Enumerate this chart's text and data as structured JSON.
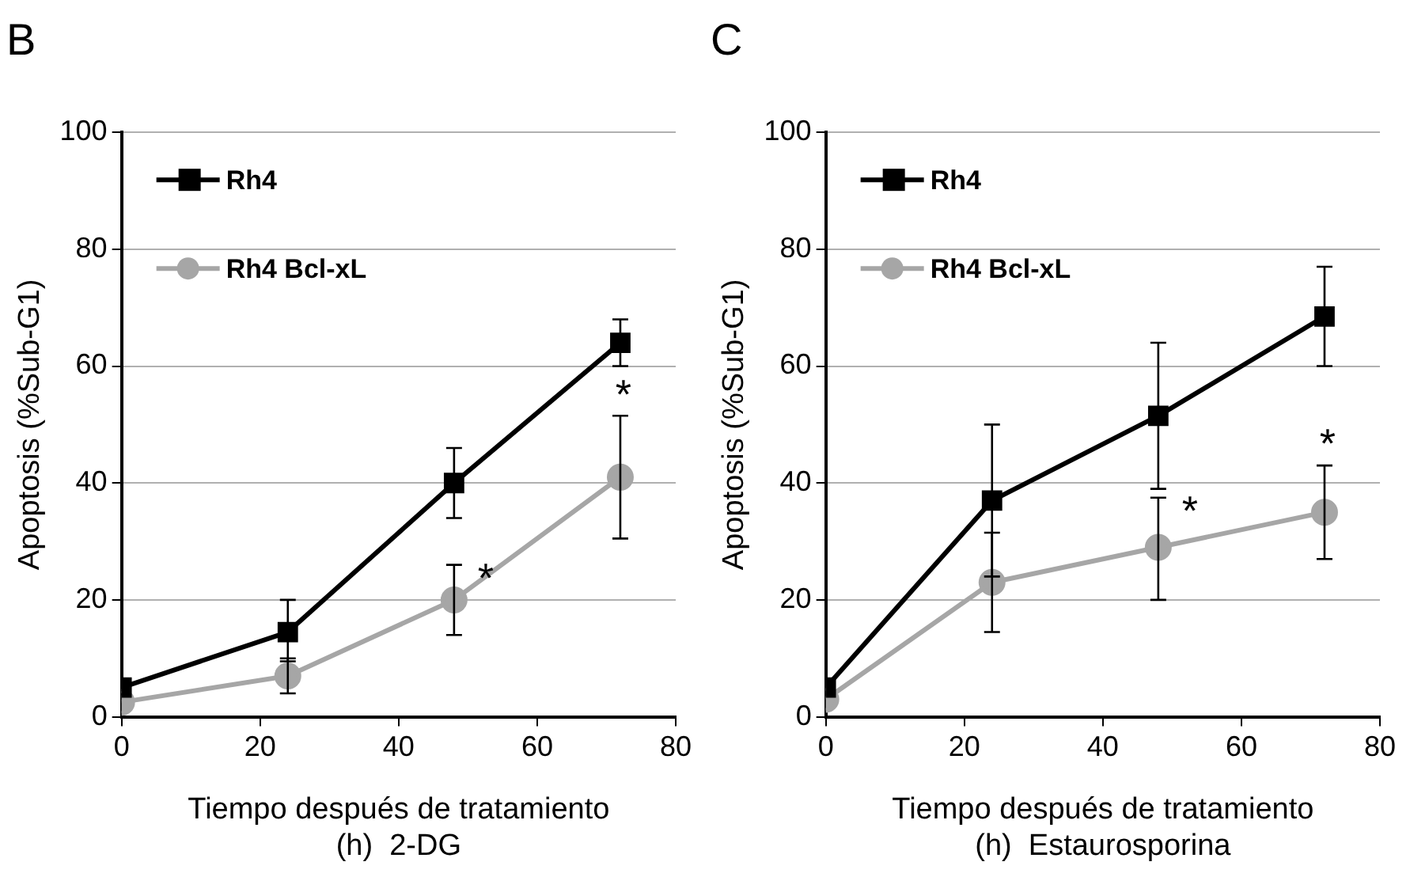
{
  "chart_data": [
    {
      "type": "line",
      "title": "B",
      "xlabel": "Tiempo después de tratamiento\n(h)  2-DG",
      "ylabel": "Apoptosis (%Sub-G1)",
      "x": [
        0,
        24,
        48,
        72
      ],
      "xlim": [
        0,
        80
      ],
      "xticks": [
        0,
        20,
        40,
        60,
        80
      ],
      "ylim": [
        0,
        100
      ],
      "yticks": [
        0,
        20,
        40,
        60,
        80,
        100
      ],
      "grid": "y",
      "legend": "top left",
      "series": [
        {
          "name": "Rh4",
          "color": "#000000",
          "marker": "square",
          "values": [
            5,
            14.5,
            40,
            64
          ],
          "errors": [
            null,
            [
              9.5,
              20
            ],
            [
              34,
              46
            ],
            [
              60,
              68
            ]
          ]
        },
        {
          "name": "Rh4 Bcl-xL",
          "color": "#a6a6a6",
          "marker": "circle",
          "values": [
            2.5,
            7,
            20,
            41
          ],
          "errors": [
            null,
            [
              4,
              10
            ],
            [
              14,
              26
            ],
            [
              30.5,
              51.5
            ]
          ]
        }
      ],
      "annotations": [
        "*",
        "*"
      ]
    },
    {
      "type": "line",
      "title": "C",
      "xlabel": "Tiempo después de tratamiento\n(h)  Estaurosporina",
      "ylabel": "Apoptosis (%Sub-G1)",
      "x": [
        0,
        24,
        48,
        72
      ],
      "xlim": [
        0,
        80
      ],
      "xticks": [
        0,
        20,
        40,
        60,
        80
      ],
      "ylim": [
        0,
        100
      ],
      "yticks": [
        0,
        20,
        40,
        60,
        80,
        100
      ],
      "grid": "y",
      "legend": "top left",
      "series": [
        {
          "name": "Rh4",
          "color": "#000000",
          "marker": "square",
          "values": [
            5,
            37,
            51.5,
            68.5
          ],
          "errors": [
            null,
            [
              24,
              50
            ],
            [
              39,
              64
            ],
            [
              60,
              77
            ]
          ]
        },
        {
          "name": "Rh4 Bcl-xL",
          "color": "#a6a6a6",
          "marker": "circle",
          "values": [
            3,
            23,
            29,
            35
          ],
          "errors": [
            null,
            [
              14.5,
              31.5
            ],
            [
              20,
              37.5
            ],
            [
              27,
              43
            ]
          ]
        }
      ],
      "annotations": [
        "*",
        "*"
      ]
    }
  ]
}
